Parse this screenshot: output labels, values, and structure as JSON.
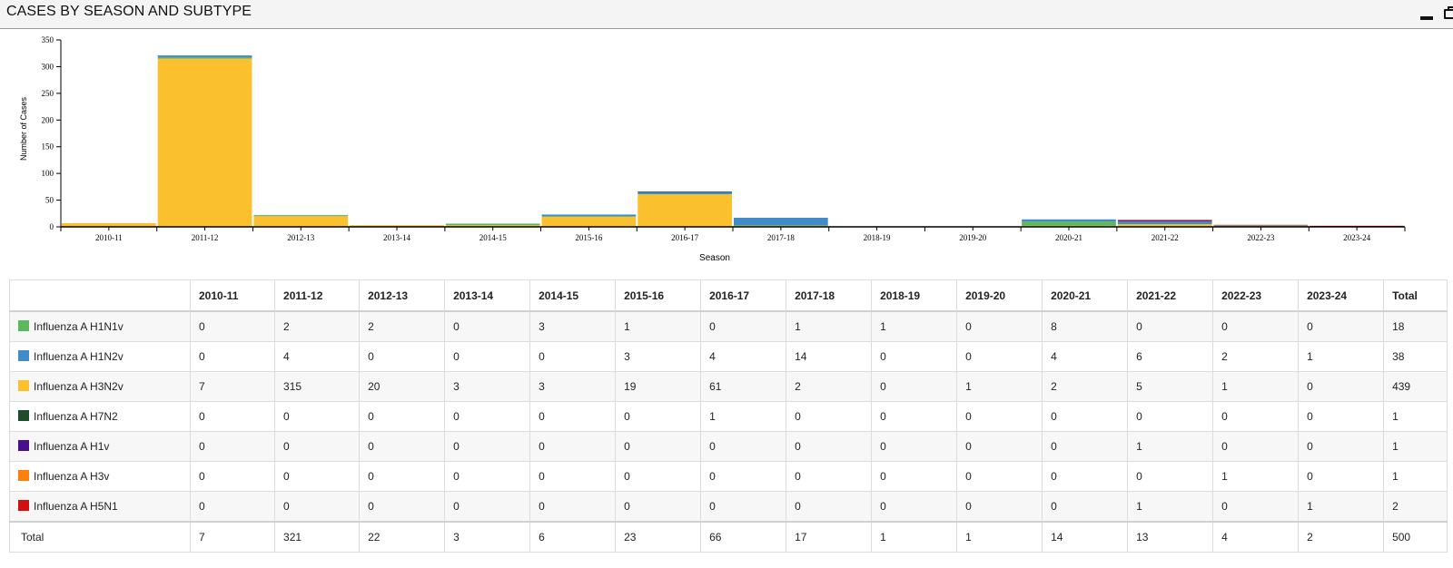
{
  "header": {
    "title": "CASES BY SEASON AND SUBTYPE"
  },
  "chart_data": {
    "type": "bar",
    "stacked": true,
    "xlabel": "Season",
    "ylabel": "Number of Cases",
    "ylim": [
      0,
      350
    ],
    "yticks": [
      0,
      50,
      100,
      150,
      200,
      250,
      300,
      350
    ],
    "grid": false,
    "categories": [
      "2010-11",
      "2011-12",
      "2012-13",
      "2013-14",
      "2014-15",
      "2015-16",
      "2016-17",
      "2017-18",
      "2018-19",
      "2019-20",
      "2020-21",
      "2021-22",
      "2022-23",
      "2023-24"
    ],
    "series": [
      {
        "name": "Influenza A H1N1v",
        "color": "#5cb85c",
        "values": [
          0,
          2,
          2,
          0,
          3,
          1,
          0,
          1,
          1,
          0,
          8,
          0,
          0,
          0
        ],
        "total": 18
      },
      {
        "name": "Influenza A H1N2v",
        "color": "#428bca",
        "values": [
          0,
          4,
          0,
          0,
          0,
          3,
          4,
          14,
          0,
          0,
          4,
          6,
          2,
          1
        ],
        "total": 38
      },
      {
        "name": "Influenza A H3N2v",
        "color": "#fbc02d",
        "values": [
          7,
          315,
          20,
          3,
          3,
          19,
          61,
          2,
          0,
          1,
          2,
          5,
          1,
          0
        ],
        "total": 439
      },
      {
        "name": "Influenza A H7N2",
        "color": "#1d4d2b",
        "values": [
          0,
          0,
          0,
          0,
          0,
          0,
          1,
          0,
          0,
          0,
          0,
          0,
          0,
          0
        ],
        "total": 1
      },
      {
        "name": "Influenza A H1v",
        "color": "#4b0f8c",
        "values": [
          0,
          0,
          0,
          0,
          0,
          0,
          0,
          0,
          0,
          0,
          0,
          1,
          0,
          0
        ],
        "total": 1
      },
      {
        "name": "Influenza A H3v",
        "color": "#ff7f0e",
        "values": [
          0,
          0,
          0,
          0,
          0,
          0,
          0,
          0,
          0,
          0,
          0,
          0,
          1,
          0
        ],
        "total": 1
      },
      {
        "name": "Influenza A H5N1",
        "color": "#d01010",
        "values": [
          0,
          0,
          0,
          0,
          0,
          0,
          0,
          0,
          0,
          0,
          0,
          1,
          0,
          1
        ],
        "total": 2
      }
    ],
    "totals": {
      "label": "Total",
      "values": [
        7,
        321,
        22,
        3,
        6,
        23,
        66,
        17,
        1,
        1,
        14,
        13,
        4,
        2
      ],
      "grand_total": 500
    },
    "table_total_header": "Total"
  }
}
